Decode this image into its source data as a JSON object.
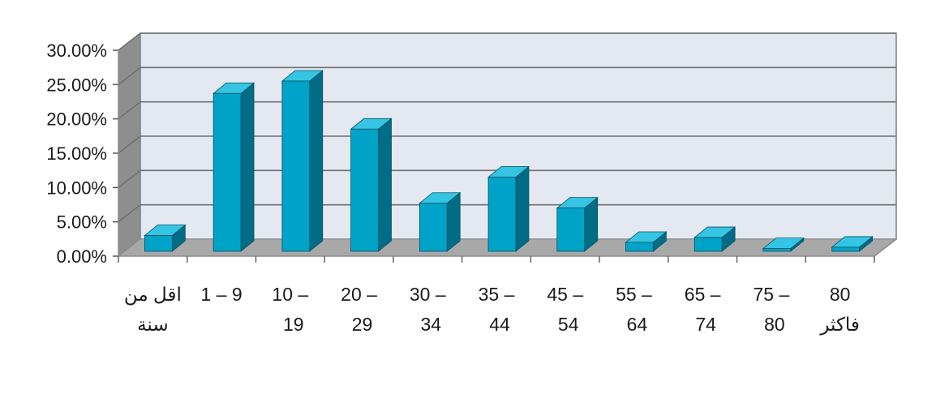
{
  "chart_data": {
    "type": "bar",
    "style": "3d-column",
    "categories": [
      [
        "اقل من",
        "سنة"
      ],
      [
        "1 – 9"
      ],
      [
        "10 –",
        "19"
      ],
      [
        "20 –",
        "29"
      ],
      [
        "30 –",
        "34"
      ],
      [
        "35 –",
        "44"
      ],
      [
        "45 –",
        "54"
      ],
      [
        "55 –",
        "64"
      ],
      [
        "65 –",
        "74"
      ],
      [
        "75 –",
        "80"
      ],
      [
        "80",
        "فاكثر"
      ]
    ],
    "values": [
      2.3,
      23.0,
      24.8,
      17.8,
      7.0,
      10.8,
      6.3,
      1.3,
      2.0,
      0.4,
      0.6
    ],
    "ylim": [
      0,
      30
    ],
    "yticks": [
      "0.00%",
      "5.00%",
      "10.00%",
      "15.00%",
      "20.00%",
      "25.00%",
      "30.00%"
    ],
    "grid": true,
    "legend": "none",
    "colors": {
      "bar_front": "#00A3C8",
      "bar_side": "#006C86",
      "bar_top": "#36C4E4",
      "back_wall": "#E4E8F1",
      "side_wall": "#8E8E8E",
      "floor": "#A8A8A8",
      "gridline": "#6f6f6f"
    }
  }
}
